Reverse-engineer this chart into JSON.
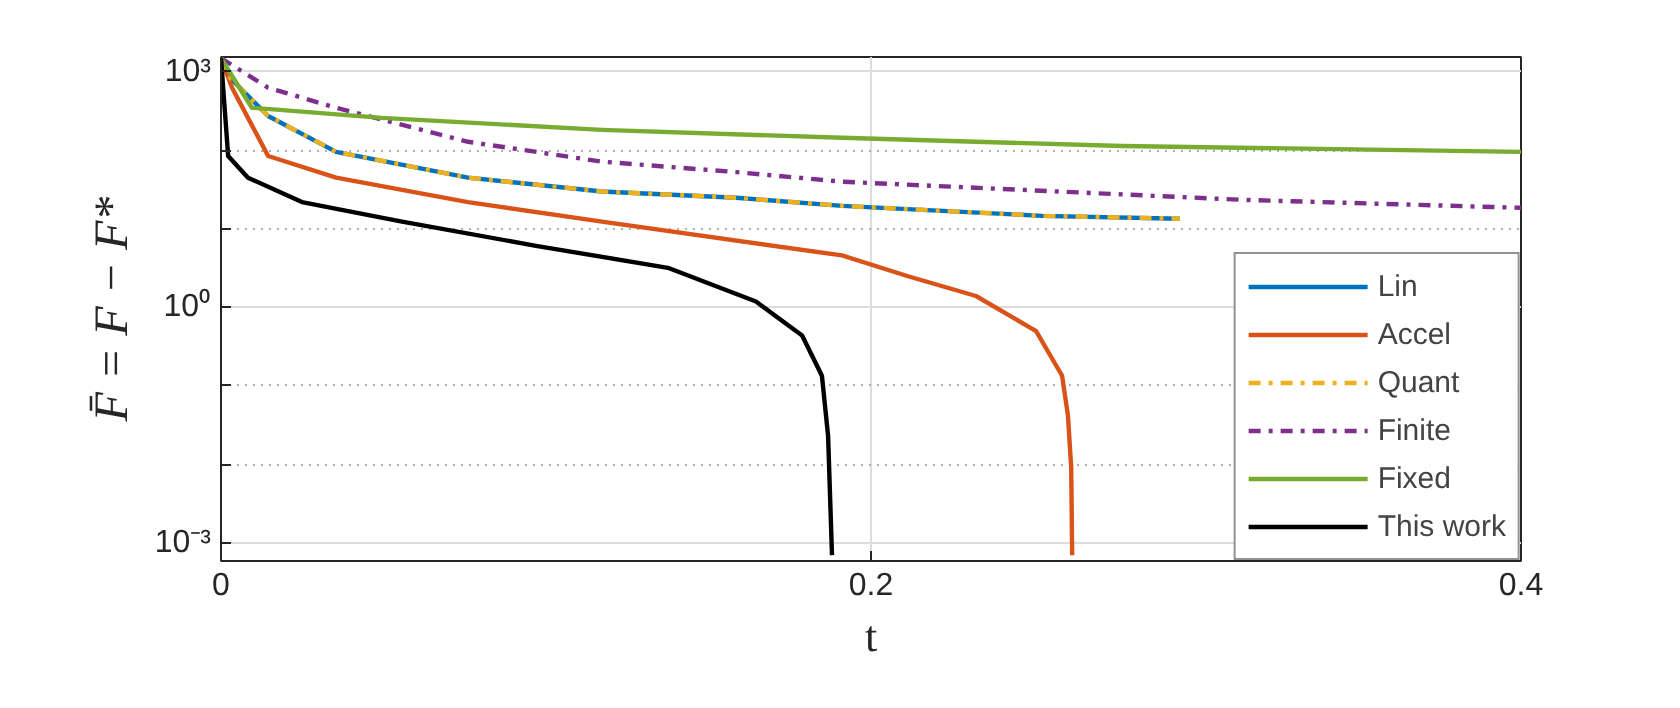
{
  "chart_data": {
    "type": "line",
    "xlabel": "t",
    "ylabel": "F̄ = F − F*",
    "log": "y",
    "grid": true,
    "legend": "bottom right",
    "xlim": [
      0,
      0.4
    ],
    "ylim": [
      0.00059,
      1550
    ],
    "xticks": [
      0,
      0.2,
      0.4
    ],
    "yticks": [
      {
        "value": 0.001,
        "label": "10⁻³"
      },
      {
        "value": 0.01,
        "label": null
      },
      {
        "value": 0.1,
        "label": null
      },
      {
        "value": 1,
        "label": "10⁰"
      },
      {
        "value": 10,
        "label": null
      },
      {
        "value": 100,
        "label": null
      },
      {
        "value": 1000,
        "label": "10³"
      }
    ],
    "series": [
      {
        "name": "Lin",
        "color": "#0072bd",
        "line_style": "solid",
        "x": [
          0,
          0.0022,
          0.0145,
          0.0354,
          0.076,
          0.1172,
          0.1585,
          0.1911,
          0.2526,
          0.295
        ],
        "values": [
          1500,
          890,
          275,
          96,
          45,
          30,
          25,
          19.7,
          14.7,
          13.5
        ]
      },
      {
        "name": "Accel",
        "color": "#d95319",
        "line_style": "solid",
        "x": [
          0,
          0.0034,
          0.0145,
          0.0354,
          0.076,
          0.1172,
          0.1911,
          0.2114,
          0.2323,
          0.2508,
          0.2588,
          0.2606,
          0.2616,
          0.2619
        ],
        "values": [
          1500,
          630,
          85,
          45,
          22,
          12.4,
          4.6,
          2.5,
          1.4,
          0.5,
          0.135,
          0.042,
          0.0092,
          0.0007
        ]
      },
      {
        "name": "Quant",
        "color": "#edb120",
        "line_style": "dashdot",
        "x": [
          0,
          0.0022,
          0.0145,
          0.0354,
          0.076,
          0.1172,
          0.1585,
          0.1911,
          0.2526,
          0.295
        ],
        "values": [
          1500,
          890,
          275,
          96,
          45,
          30,
          25,
          19.7,
          14.7,
          13.5
        ]
      },
      {
        "name": "Finite",
        "color": "#7e2f8e",
        "line_style": "dashdot",
        "x": [
          0,
          0.0145,
          0.0354,
          0.076,
          0.1172,
          0.1585,
          0.1911,
          0.3142,
          0.4
        ],
        "values": [
          1500,
          630,
          350,
          129,
          72,
          53,
          40,
          23.5,
          18.6
        ]
      },
      {
        "name": "Fixed",
        "color": "#77ac30",
        "line_style": "solid",
        "x": [
          0,
          0.0095,
          0.0495,
          0.1172,
          0.1911,
          0.2772,
          0.4
        ],
        "values": [
          1500,
          350,
          260,
          183,
          145,
          114,
          96
        ]
      },
      {
        "name": "This work",
        "color": "#000000",
        "line_style": "solid",
        "x": [
          0,
          0.0022,
          0.0083,
          0.0249,
          0.0557,
          0.0969,
          0.1375,
          0.1646,
          0.1788,
          0.1849,
          0.1868,
          0.188
        ],
        "values": [
          1500,
          85,
          45,
          22,
          12.4,
          6.1,
          3.2,
          1.19,
          0.44,
          0.135,
          0.023,
          0.0007
        ]
      }
    ]
  }
}
